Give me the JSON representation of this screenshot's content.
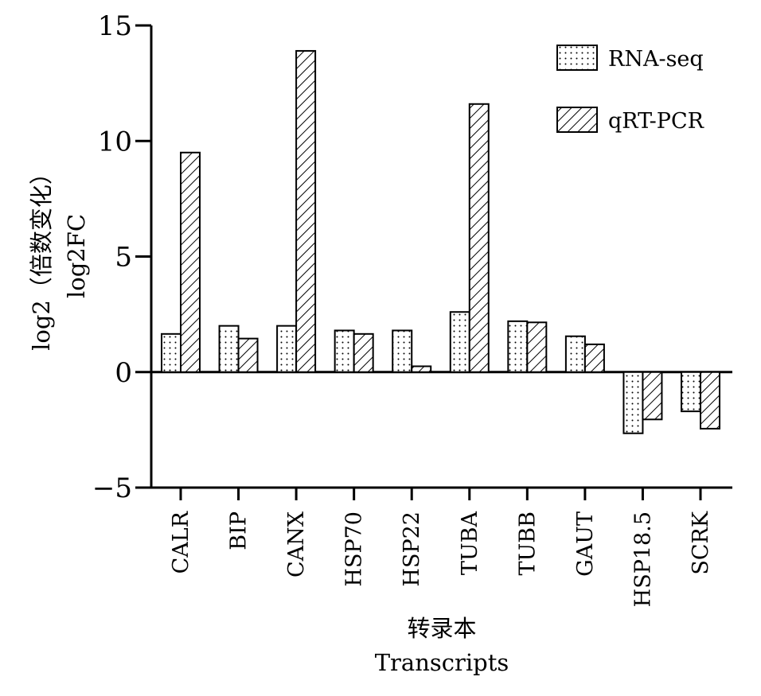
{
  "chart_data": {
    "type": "bar",
    "title": "",
    "xlabel_line1": "转录本",
    "xlabel_line2": "Transcripts",
    "ylabel_line1": "log2（倍数变化）",
    "ylabel_line2": "log2FC",
    "ylim": [
      -5,
      15
    ],
    "yticks": [
      -5,
      0,
      5,
      10,
      15
    ],
    "ytick_labels": [
      "−5",
      "0",
      "5",
      "10",
      "15"
    ],
    "categories": [
      "CALR",
      "BIP",
      "CANX",
      "HSP70",
      "HSP22",
      "TUBA",
      "TUBB",
      "GAUT",
      "HSP18.5",
      "SCRK"
    ],
    "series": [
      {
        "name": "RNA-seq",
        "pattern": "dots",
        "values": [
          1.65,
          2.0,
          2.0,
          1.8,
          1.8,
          2.6,
          2.2,
          1.55,
          -2.65,
          -1.7
        ]
      },
      {
        "name": "qRT-PCR",
        "pattern": "hatch",
        "values": [
          9.5,
          1.45,
          13.9,
          1.65,
          0.25,
          11.6,
          2.15,
          1.2,
          -2.05,
          -2.45
        ]
      }
    ],
    "legend": "top-right",
    "grid": false
  }
}
